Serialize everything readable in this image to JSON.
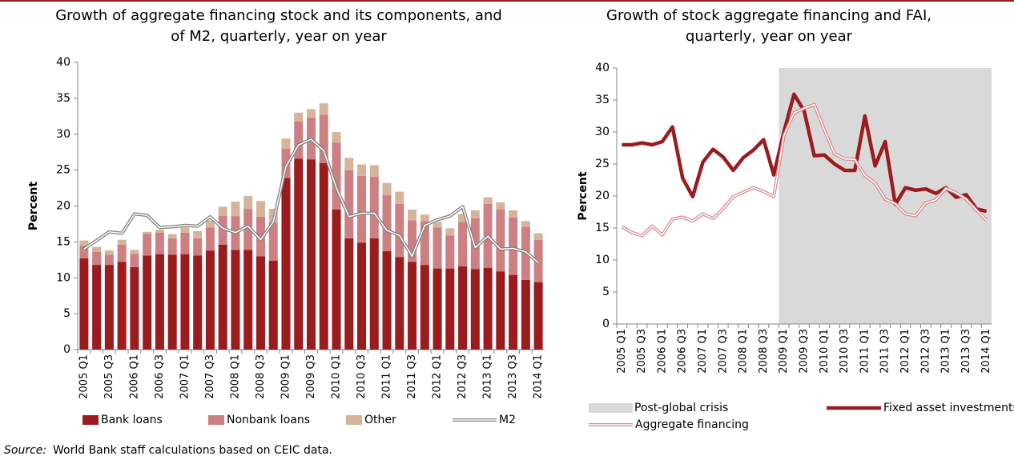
{
  "chart_data": [
    {
      "type": "bar",
      "stacked": true,
      "title": [
        "Growth of aggregate financing stock and its components, and",
        "of M2, quarterly, year on year"
      ],
      "y_label": "Percent",
      "categories": [
        "2005 Q1",
        null,
        "2005 Q3",
        null,
        "2006 Q1",
        null,
        "2006 Q3",
        null,
        "2007 Q1",
        null,
        "2007 Q3",
        null,
        "2008 Q1",
        null,
        "2008 Q3",
        null,
        "2009 Q1",
        null,
        "2009 Q3",
        null,
        "2010 Q1",
        null,
        "2010 Q3",
        null,
        "2011 Q1",
        null,
        "2011 Q3",
        null,
        "2012 Q1",
        null,
        "2012 Q3",
        null,
        "2013 Q1",
        null,
        "2013 Q3",
        null,
        "2014 Q1"
      ],
      "series": [
        {
          "name": "Bank loans",
          "color": "#9b1c1f",
          "values": [
            12.7,
            11.8,
            11.8,
            12.2,
            11.5,
            13.1,
            13.3,
            13.2,
            13.3,
            13.1,
            13.8,
            14.6,
            13.9,
            13.9,
            13.0,
            12.4,
            23.9,
            26.6,
            26.5,
            26.0,
            19.5,
            15.5,
            14.9,
            15.5,
            13.7,
            12.9,
            12.2,
            11.8,
            11.3,
            11.3,
            11.6,
            11.2,
            11.4,
            10.9,
            10.4,
            9.7,
            9.4
          ]
        },
        {
          "name": "Nonbank loans",
          "color": "#cd8083",
          "values": [
            1.8,
            1.8,
            1.4,
            2.4,
            1.8,
            3.0,
            3.0,
            2.3,
            3.0,
            2.4,
            3.2,
            4.0,
            4.7,
            5.7,
            5.5,
            5.3,
            4.1,
            5.2,
            5.8,
            6.7,
            9.3,
            9.5,
            9.3,
            8.6,
            7.8,
            7.4,
            5.8,
            6.1,
            5.7,
            4.6,
            6.2,
            7.1,
            8.9,
            8.6,
            8.0,
            7.4,
            5.9
          ]
        },
        {
          "name": "Other",
          "color": "#d4b59c",
          "values": [
            0.7,
            0.7,
            0.6,
            0.7,
            0.6,
            0.3,
            0.4,
            0.6,
            0.7,
            1.0,
            1.0,
            1.3,
            2.0,
            1.8,
            2.2,
            1.9,
            1.4,
            1.2,
            1.2,
            1.6,
            1.5,
            1.7,
            1.6,
            1.6,
            1.7,
            1.7,
            1.5,
            0.9,
            0.8,
            1.0,
            1.1,
            1.1,
            0.9,
            1.0,
            1.0,
            0.8,
            0.9
          ]
        },
        {
          "name": "M2",
          "type": "line",
          "color": "#7f7f7f",
          "values": [
            14.0,
            15.2,
            16.4,
            16.2,
            18.9,
            18.7,
            17.0,
            17.1,
            17.3,
            17.2,
            18.5,
            16.9,
            16.3,
            17.2,
            15.3,
            17.8,
            25.5,
            28.5,
            29.3,
            27.7,
            22.5,
            18.5,
            19.0,
            19.0,
            16.6,
            15.9,
            13.0,
            17.3,
            18.1,
            18.6,
            19.9,
            14.2,
            15.8,
            14.0,
            14.1,
            13.6,
            12.1
          ]
        }
      ],
      "ylim": [
        0,
        40
      ],
      "yticks": [
        0,
        5,
        10,
        15,
        20,
        25,
        30,
        35,
        40
      ]
    },
    {
      "type": "line",
      "title": [
        "Growth of stock aggregate financing and FAI,",
        "quarterly, year on year"
      ],
      "y_label": "Percent",
      "categories": [
        "2005 Q1",
        null,
        "2005 Q3",
        null,
        "2006 Q1",
        null,
        "2006 Q3",
        null,
        "2007 Q1",
        null,
        "2007 Q3",
        null,
        "2008 Q1",
        null,
        "2008 Q3",
        null,
        "2009 Q1",
        null,
        "2009 Q3",
        null,
        "2010 Q1",
        null,
        "2010 Q3",
        null,
        "2011 Q1",
        null,
        "2011 Q3",
        null,
        "2012 Q1",
        null,
        "2012 Q3",
        null,
        "2013 Q1",
        null,
        "2013 Q3",
        null,
        "2014 Q1"
      ],
      "shaded": {
        "name": "Post-global crisis",
        "color": "#d9d9d9",
        "start": "2009 Q1"
      },
      "series": [
        {
          "name": "Fixed asset investments",
          "color": "#9b1c1f",
          "values": [
            28.0,
            28.0,
            28.3,
            28.0,
            28.5,
            30.8,
            22.8,
            19.9,
            25.3,
            27.3,
            26.1,
            24.0,
            26.0,
            27.2,
            28.8,
            23.3,
            30.0,
            35.9,
            33.3,
            26.3,
            26.4,
            25.0,
            24.0,
            24.0,
            32.5,
            24.7,
            28.5,
            18.7,
            21.3,
            20.9,
            21.1,
            20.4,
            21.3,
            19.8,
            20.2,
            18.0,
            17.6
          ]
        },
        {
          "name": "Aggregate financing",
          "color": "#d98a8c",
          "double": true,
          "values": [
            15.2,
            14.3,
            13.8,
            15.3,
            13.9,
            16.4,
            16.7,
            16.1,
            17.2,
            16.5,
            18.0,
            19.9,
            20.6,
            21.3,
            20.7,
            19.9,
            29.4,
            33.0,
            33.7,
            34.3,
            30.3,
            26.6,
            25.8,
            25.7,
            23.2,
            22.0,
            19.5,
            18.8,
            17.2,
            16.9,
            18.9,
            19.4,
            21.2,
            20.5,
            19.5,
            17.8,
            16.2
          ]
        }
      ],
      "ylim": [
        0,
        40
      ],
      "yticks": [
        0,
        5,
        10,
        15,
        20,
        25,
        30,
        35,
        40
      ]
    }
  ],
  "source": {
    "label": "Source:",
    "text": "World Bank staff calculations based on CEIC data."
  }
}
